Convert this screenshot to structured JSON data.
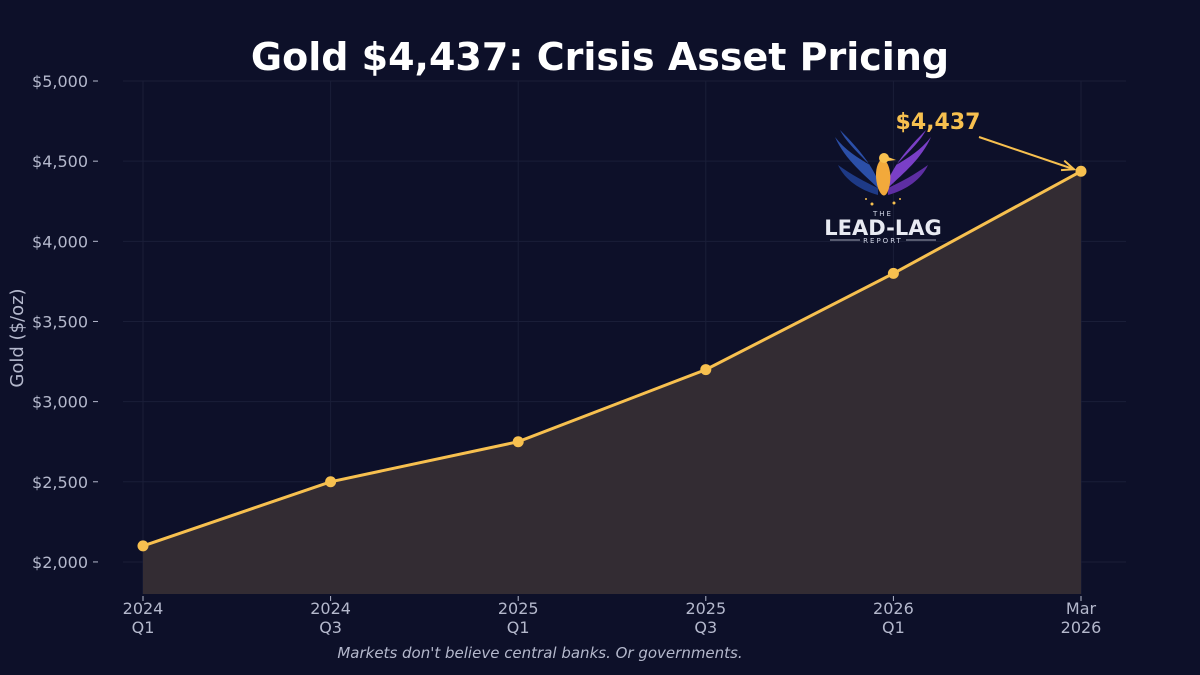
{
  "colors": {
    "background": "#0d1029",
    "line": "#f7c04f",
    "area": "#332c33",
    "text": "#b4b8cc",
    "title": "#ffffff",
    "grid": "#1a1e38"
  },
  "chart_data": {
    "type": "area",
    "title": "Gold $4,437: Crisis Asset Pricing",
    "xlabel": "",
    "ylabel": "Gold ($/oz)",
    "ylim": [
      1800,
      5000
    ],
    "yticks": [
      2000,
      2500,
      3000,
      3500,
      4000,
      4500,
      5000
    ],
    "ytick_labels": [
      "$2,000",
      "$2,500",
      "$3,000",
      "$3,500",
      "$4,000",
      "$4,500",
      "$5,000"
    ],
    "categories": [
      [
        "2024",
        "Q1"
      ],
      [
        "2024",
        "Q3"
      ],
      [
        "2025",
        "Q1"
      ],
      [
        "2025",
        "Q3"
      ],
      [
        "2026",
        "Q1"
      ],
      [
        "Mar",
        "2026"
      ]
    ],
    "series": [
      {
        "name": "Gold",
        "values": [
          2100,
          2500,
          2750,
          3200,
          3800,
          4437
        ]
      }
    ],
    "grid": true,
    "annotation": {
      "text": "$4,437",
      "point_index": 5
    },
    "caption": "Markets don't believe central banks. Or governments."
  },
  "logo": {
    "line1": "THE",
    "line2": "LEAD-LAG",
    "line3": "REPORT"
  }
}
